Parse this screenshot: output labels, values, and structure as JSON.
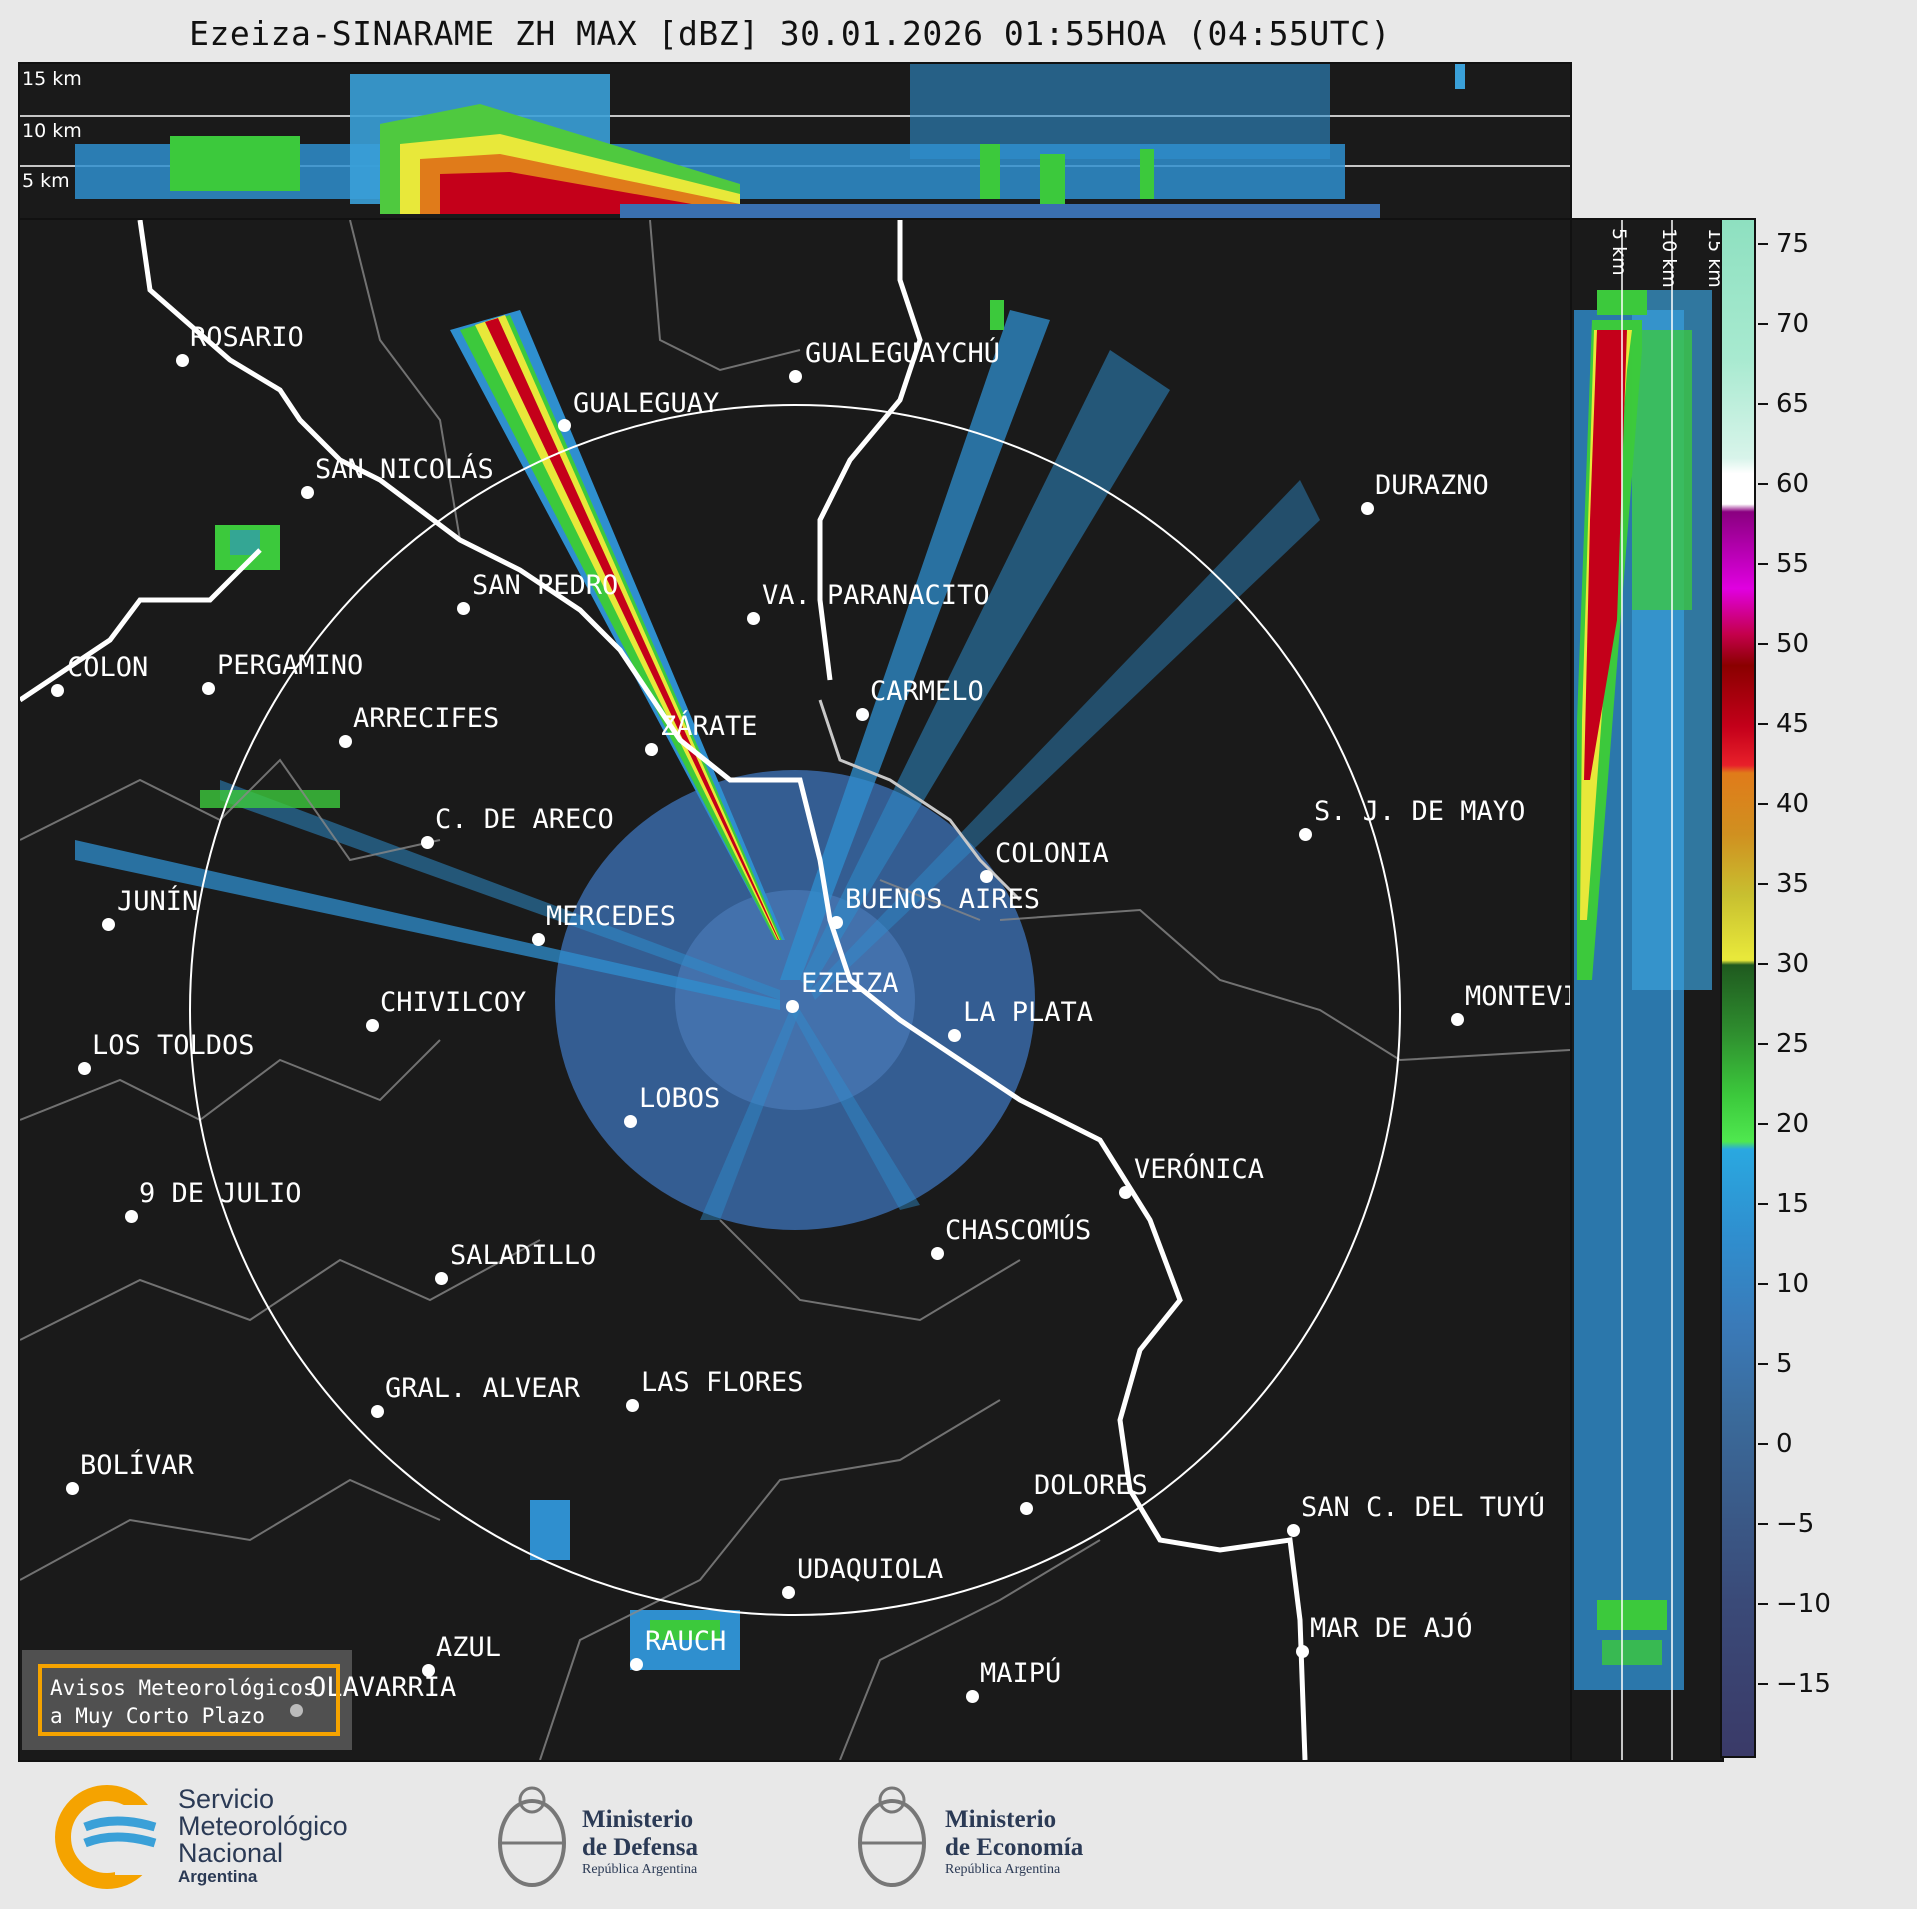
{
  "title": "Ezeiza-SINARAME ZH MAX [dBZ] 30.01.2026 01:55HOA (04:55UTC)",
  "top_panel": {
    "altitude_labels": [
      "15 km",
      "10 km",
      "5 km"
    ]
  },
  "side_panel": {
    "altitude_labels": [
      "5 km",
      "10 km",
      "15 km"
    ]
  },
  "colorbar": {
    "ticks": [
      "75",
      "70",
      "65",
      "60",
      "55",
      "50",
      "45",
      "40",
      "35",
      "30",
      "25",
      "20",
      "15",
      "10",
      "5",
      "0",
      "−5",
      "−10",
      "−15"
    ]
  },
  "cities": [
    {
      "name": "ROSARIO"
    },
    {
      "name": "GUALEGUAYCHÚ"
    },
    {
      "name": "GUALEGUAY"
    },
    {
      "name": "SAN NICOLÁS"
    },
    {
      "name": "DURAZNO"
    },
    {
      "name": "SAN PEDRO"
    },
    {
      "name": "VA. PARANACITO"
    },
    {
      "name": "COLON"
    },
    {
      "name": "PERGAMINO"
    },
    {
      "name": "CARMELO"
    },
    {
      "name": "ARRECIFES"
    },
    {
      "name": "ZÁRATE"
    },
    {
      "name": "S. J. DE MAYO"
    },
    {
      "name": "C. DE ARECO"
    },
    {
      "name": "COLONIA"
    },
    {
      "name": "JUNÍN"
    },
    {
      "name": "BUENOS AIRES"
    },
    {
      "name": "MERCEDES"
    },
    {
      "name": "EZEIZA"
    },
    {
      "name": "MONTEVIDEO"
    },
    {
      "name": "CHIVILCOY"
    },
    {
      "name": "LA PLATA"
    },
    {
      "name": "LOS TOLDOS"
    },
    {
      "name": "LOBOS"
    },
    {
      "name": "VERÓNICA"
    },
    {
      "name": "9 DE JULIO"
    },
    {
      "name": "CHASCOMÚS"
    },
    {
      "name": "SALADILLO"
    },
    {
      "name": "GRAL. ALVEAR"
    },
    {
      "name": "LAS FLORES"
    },
    {
      "name": "BOLÍVAR"
    },
    {
      "name": "DOLORES"
    },
    {
      "name": "SAN C. DEL TUYÚ"
    },
    {
      "name": "UDAQUIOLA"
    },
    {
      "name": "MAR DE AJÓ"
    },
    {
      "name": "AZUL"
    },
    {
      "name": "RAUCH"
    },
    {
      "name": "OLAVARRÍA"
    },
    {
      "name": "MAIPÚ"
    }
  ],
  "warning_box": {
    "line1": "Avisos Meteorológicos",
    "line2": "a Muy Corto Plazo",
    "border_color": "#f5a300"
  },
  "logos": {
    "smn": {
      "line1": "Servicio",
      "line2": "Meteorológico",
      "line3": "Nacional",
      "line4": "Argentina"
    },
    "defensa": {
      "line1": "Ministerio",
      "line2": "de Defensa",
      "line3": "República Argentina"
    },
    "economia": {
      "line1": "Ministerio",
      "line2": "de Economía",
      "line3": "República Argentina"
    }
  }
}
